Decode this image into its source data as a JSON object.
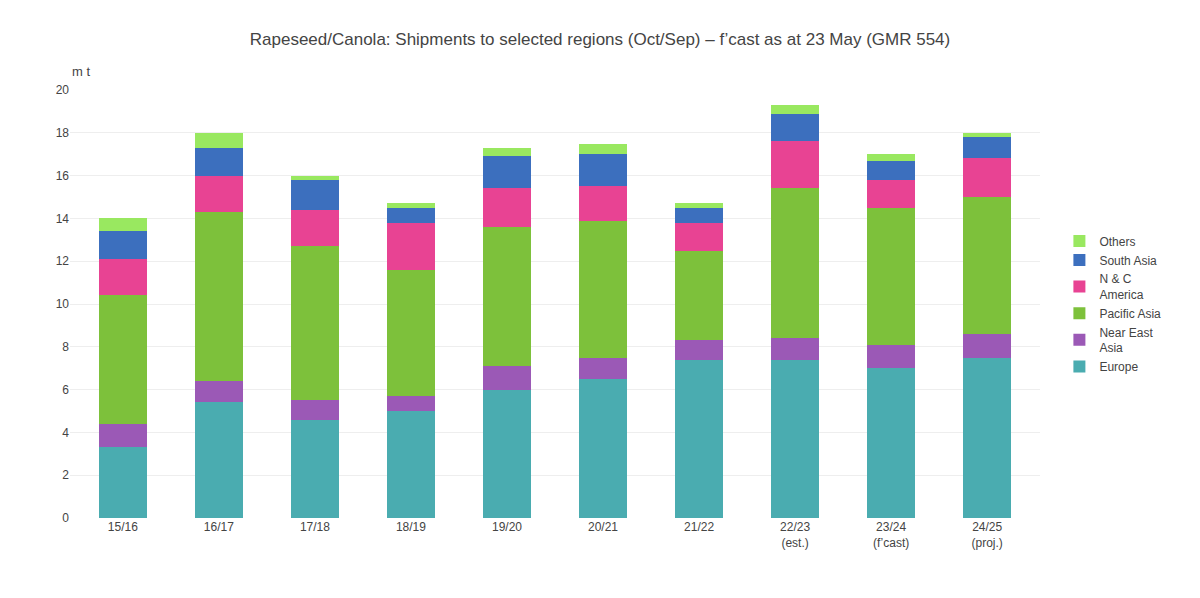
{
  "chart_data": {
    "type": "bar",
    "stacked": true,
    "title": "Rapeseed/Canola: Shipments to selected regions (Oct/Sep) – f’cast as at 23 May (GMR 554)",
    "ylabel": "m t",
    "categories": [
      "15/16",
      "16/17",
      "17/18",
      "18/19",
      "19/20",
      "20/21",
      "21/22",
      "22/23\n(est.)",
      "23/24\n(f’cast)",
      "24/25\n(proj.)"
    ],
    "series": [
      {
        "name": "Europe",
        "color": "#4AACB0",
        "values": [
          3.3,
          5.4,
          4.6,
          5.0,
          6.0,
          6.5,
          7.4,
          7.4,
          7.0,
          7.5
        ]
      },
      {
        "name": "Near East\nAsia",
        "color": "#9B59B6",
        "values": [
          1.1,
          1.0,
          0.9,
          0.7,
          1.1,
          1.0,
          0.9,
          1.0,
          1.1,
          1.1
        ]
      },
      {
        "name": "Pacific Asia",
        "color": "#7DC13B",
        "values": [
          6.0,
          7.9,
          7.2,
          5.9,
          6.5,
          6.4,
          4.2,
          7.0,
          6.4,
          6.4
        ]
      },
      {
        "name": "N & C\nAmerica",
        "color": "#E84393",
        "values": [
          1.7,
          1.7,
          1.7,
          2.2,
          1.8,
          1.6,
          1.3,
          2.2,
          1.3,
          1.8
        ]
      },
      {
        "name": "South Asia",
        "color": "#3C6FBE",
        "values": [
          1.3,
          1.3,
          1.4,
          0.7,
          1.5,
          1.5,
          0.7,
          1.3,
          0.9,
          1.0
        ]
      },
      {
        "name": "Others",
        "color": "#99E860",
        "values": [
          0.6,
          0.7,
          0.2,
          0.2,
          0.4,
          0.5,
          0.2,
          0.4,
          0.3,
          0.2
        ]
      }
    ],
    "ylim": [
      0,
      20
    ],
    "yticks": [
      0,
      2,
      4,
      6,
      8,
      10,
      12,
      14,
      16,
      18,
      20
    ],
    "grid": true,
    "legend": "right"
  }
}
